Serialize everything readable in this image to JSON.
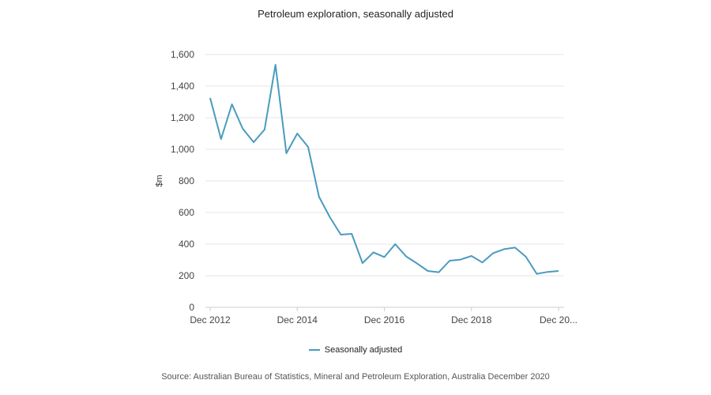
{
  "chart_data": {
    "type": "line",
    "title": "Petroleum exploration, seasonally adjusted",
    "xlabel": "",
    "ylabel": "$m",
    "ylim": [
      0,
      1600
    ],
    "yticks": [
      0,
      200,
      400,
      600,
      800,
      1000,
      1200,
      1400,
      1600
    ],
    "ytick_labels": [
      "0",
      "200",
      "400",
      "600",
      "800",
      "1,000",
      "1,200",
      "1,400",
      "1,600"
    ],
    "xtick_labels": [
      "Dec 2012",
      "Dec 2014",
      "Dec 2016",
      "Dec 2018",
      "Dec 20..."
    ],
    "xtick_index": [
      0,
      8,
      16,
      24,
      32
    ],
    "grid": true,
    "legend_position": "bottom",
    "colors": {
      "series": "#4a9bbd",
      "grid": "#e6e6e6",
      "axis": "#cccccc"
    },
    "x": [
      "Dec 2012",
      "Mar 2013",
      "Jun 2013",
      "Sep 2013",
      "Dec 2013",
      "Mar 2014",
      "Jun 2014",
      "Sep 2014",
      "Dec 2014",
      "Mar 2015",
      "Jun 2015",
      "Sep 2015",
      "Dec 2015",
      "Mar 2016",
      "Jun 2016",
      "Sep 2016",
      "Dec 2016",
      "Mar 2017",
      "Jun 2017",
      "Sep 2017",
      "Dec 2017",
      "Mar 2018",
      "Jun 2018",
      "Sep 2018",
      "Dec 2018",
      "Mar 2019",
      "Jun 2019",
      "Sep 2019",
      "Dec 2019",
      "Mar 2020",
      "Jun 2020",
      "Sep 2020",
      "Dec 2020"
    ],
    "series": [
      {
        "name": "Seasonally adjusted",
        "values": [
          1325,
          1065,
          1285,
          1130,
          1045,
          1125,
          1535,
          975,
          1100,
          1015,
          700,
          570,
          460,
          465,
          280,
          348,
          318,
          400,
          322,
          278,
          230,
          222,
          295,
          302,
          325,
          284,
          343,
          368,
          378,
          320,
          212,
          224,
          230
        ]
      }
    ]
  },
  "source_note": "Source: Australian Bureau of Statistics, Mineral and Petroleum Exploration, Australia December 2020"
}
